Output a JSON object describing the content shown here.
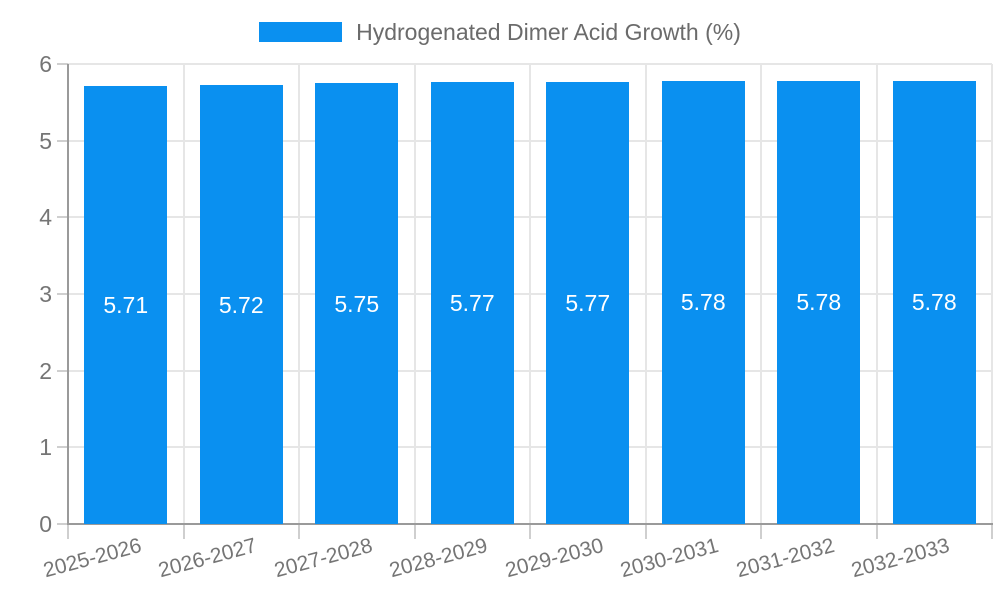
{
  "chart_data": {
    "type": "bar",
    "title": "Hydrogenated Dimer Acid Growth (%)",
    "legend": {
      "position": "top",
      "label": "Hydrogenated Dimer Acid Growth (%)"
    },
    "categories": [
      "2025-2026",
      "2026-2027",
      "2027-2028",
      "2028-2029",
      "2029-2030",
      "2030-2031",
      "2031-2032",
      "2032-2033"
    ],
    "values": [
      5.71,
      5.72,
      5.75,
      5.77,
      5.77,
      5.78,
      5.78,
      5.78
    ],
    "value_labels": [
      "5.71",
      "5.72",
      "5.75",
      "5.77",
      "5.77",
      "5.78",
      "5.78",
      "5.78"
    ],
    "xlabel": "",
    "ylabel": "",
    "ylim": [
      0,
      6
    ],
    "yticks": [
      0,
      1,
      2,
      3,
      4,
      5,
      6
    ],
    "grid": true
  },
  "colors": {
    "bar": "#0a90f0",
    "gridline": "#e6e6e6",
    "axis": "#9a9a9a",
    "tick": "#cfcfcf",
    "axis_label": "#757575",
    "legend_text": "#6b6b6b",
    "value_label": "#ffffff",
    "background": "#ffffff"
  }
}
